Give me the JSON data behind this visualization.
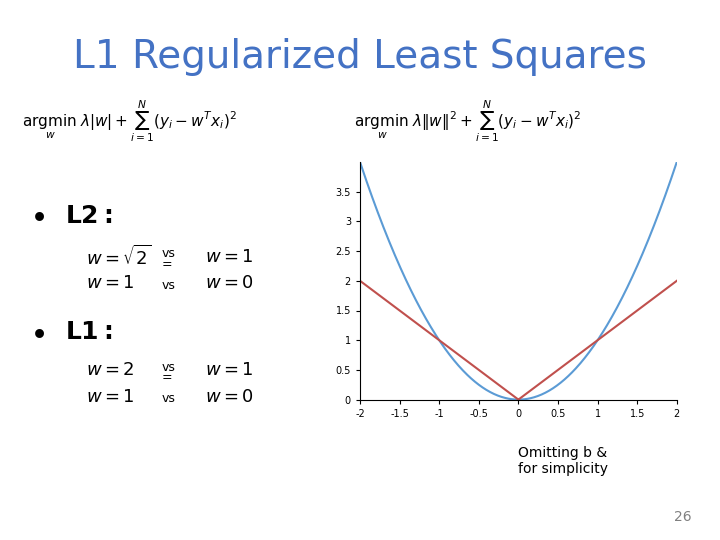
{
  "title": "L1 Regularized Least Squares",
  "title_color": "#4472C4",
  "title_fontsize": 28,
  "background_color": "#FFFFFF",
  "bullet1": "L2:",
  "bullet2": "L1:",
  "plot_xlim": [
    -2,
    2
  ],
  "plot_ylim": [
    0,
    4
  ],
  "plot_xticks": [
    -2,
    -1.5,
    -1,
    -0.5,
    0,
    0.5,
    1,
    1.5,
    2
  ],
  "plot_yticks": [
    0,
    0.5,
    1,
    1.5,
    2,
    2.5,
    3,
    3.5
  ],
  "parabola_color": "#5B9BD5",
  "abs_color": "#C0504D",
  "formula_l1": "\\argmin_w \\lambda|w| + \\sum_{i=1}^{N}(y_i - w^T x_i)^2",
  "formula_l2": "\\argmin_w \\lambda\\|w\\|^2 + \\sum_{i=1}^{N}(y_i - w^T x_i)^2",
  "note_text": "Omitting b &\nfor simplicity",
  "page_num": "26",
  "l2_line1_left": "w = \\sqrt{2}",
  "l2_line1_right": "w = 1",
  "l2_line2_left": "w = 1",
  "l2_line2_right": "w = 0",
  "l1_line1_left": "w = 2",
  "l1_line1_right": "w = 1",
  "l1_line2_left": "w = 1",
  "l1_line2_right": "w = 0"
}
